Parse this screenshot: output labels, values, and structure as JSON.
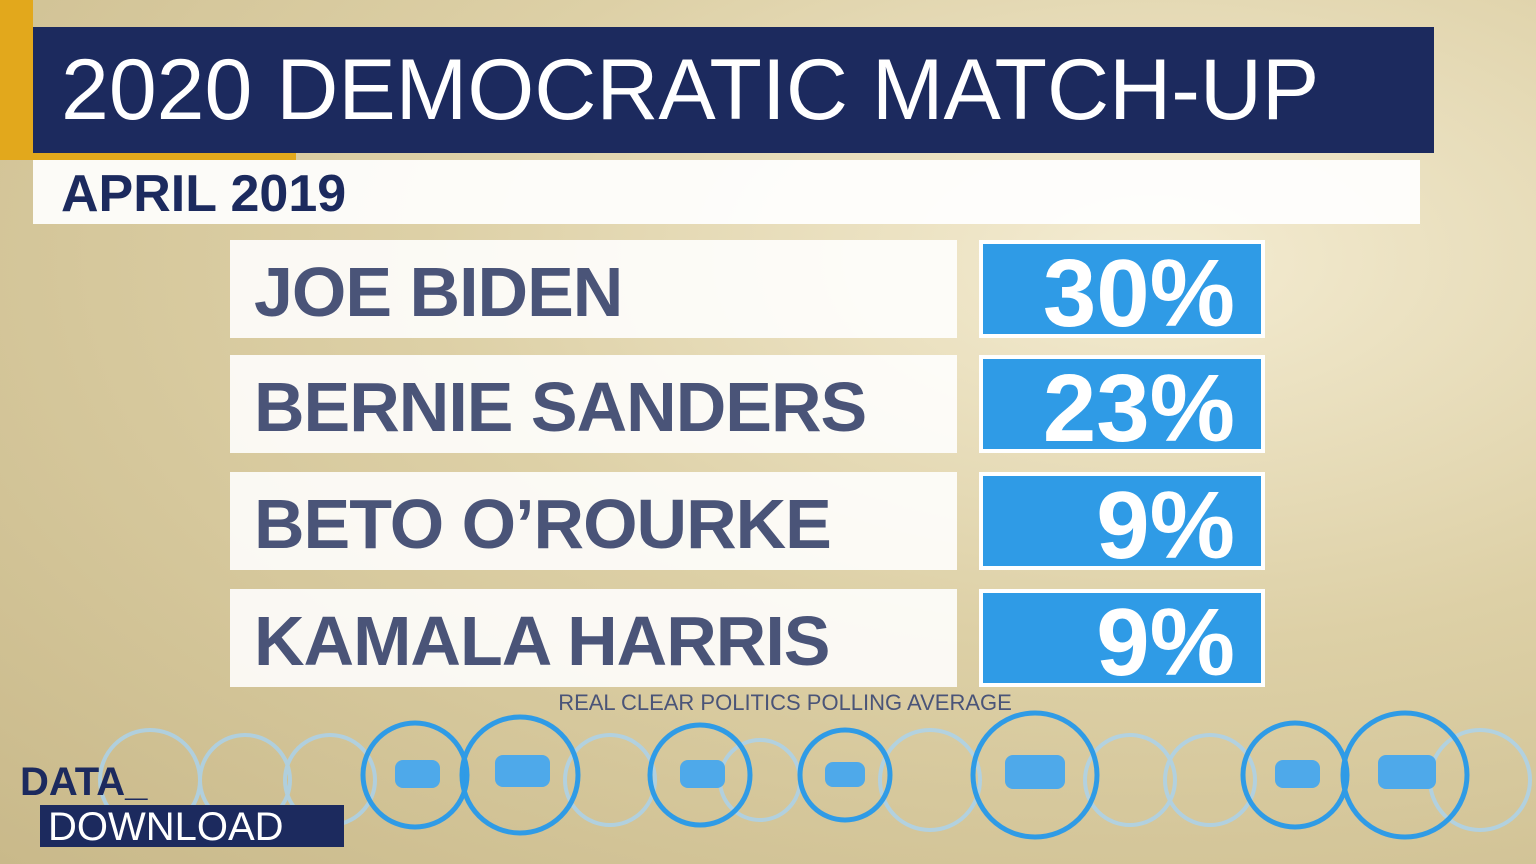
{
  "header": {
    "title": "2020 DEMOCRATIC MATCH-UP",
    "subtitle": "APRIL 2019"
  },
  "rows": [
    {
      "name": "JOE BIDEN",
      "value": "30%"
    },
    {
      "name": "BERNIE SANDERS",
      "value": "23%"
    },
    {
      "name": "BETO O’ROURKE",
      "value": "9%"
    },
    {
      "name": "KAMALA HARRIS",
      "value": "9%"
    }
  ],
  "source": "REAL CLEAR POLITICS POLLING AVERAGE",
  "logo": {
    "line1": "DATA_",
    "line2": "DOWNLOAD"
  }
}
